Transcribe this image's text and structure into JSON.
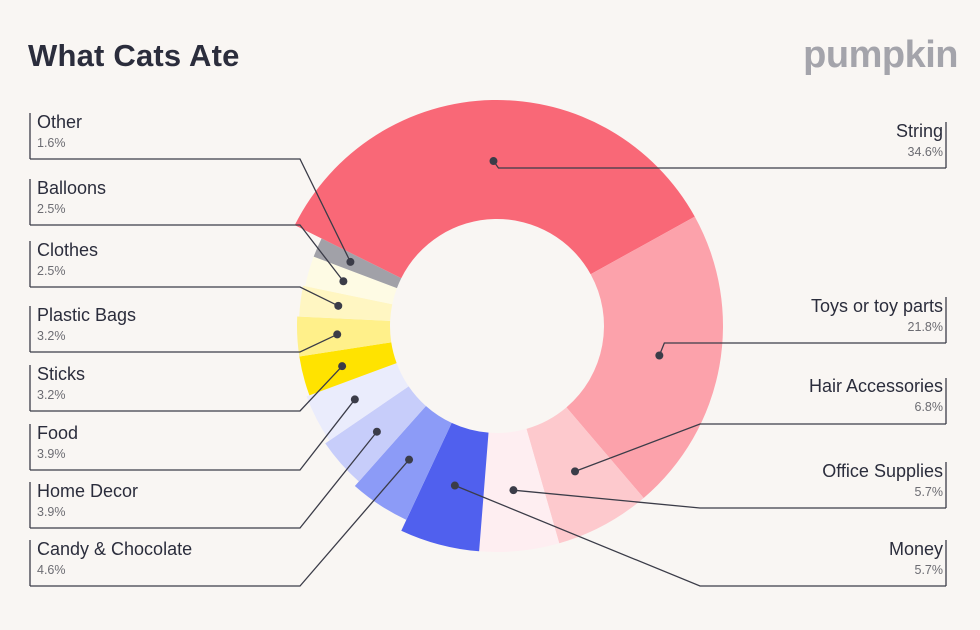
{
  "header": {
    "title": "What Cats Ate",
    "logo": "pumpkin"
  },
  "colors": {
    "background": "#f9f6f3",
    "text": "#2b2d3c",
    "line": "#3b3c48"
  },
  "chart_data": {
    "type": "pie",
    "title": "What Cats Ate",
    "slices": [
      {
        "label": "String",
        "value": 34.6,
        "display": "34.6%",
        "color": "#f96877"
      },
      {
        "label": "Toys or toy parts",
        "value": 21.8,
        "display": "21.8%",
        "color": "#fca2ab"
      },
      {
        "label": "Hair Accessories",
        "value": 6.8,
        "display": "6.8%",
        "color": "#fdc9cd"
      },
      {
        "label": "Office Supplies",
        "value": 5.7,
        "display": "5.7%",
        "color": "#feeef1"
      },
      {
        "label": "Money",
        "value": 5.7,
        "display": "5.7%",
        "color": "#5060ee"
      },
      {
        "label": "Candy & Chocolate",
        "value": 4.6,
        "display": "4.6%",
        "color": "#8c9bf7"
      },
      {
        "label": "Home Decor",
        "value": 3.9,
        "display": "3.9%",
        "color": "#c7cdfa"
      },
      {
        "label": "Food",
        "value": 3.9,
        "display": "3.9%",
        "color": "#eaecfc"
      },
      {
        "label": "Sticks",
        "value": 3.2,
        "display": "3.2%",
        "color": "#ffe300"
      },
      {
        "label": "Plastic Bags",
        "value": 3.2,
        "display": "3.2%",
        "color": "#fff08a"
      },
      {
        "label": "Clothes",
        "value": 2.5,
        "display": "2.5%",
        "color": "#fff6c2"
      },
      {
        "label": "Balloons",
        "value": 2.5,
        "display": "2.5%",
        "color": "#fefbe4"
      },
      {
        "label": "Other",
        "value": 1.6,
        "display": "1.6%",
        "color": "#a1a1a8"
      }
    ]
  }
}
